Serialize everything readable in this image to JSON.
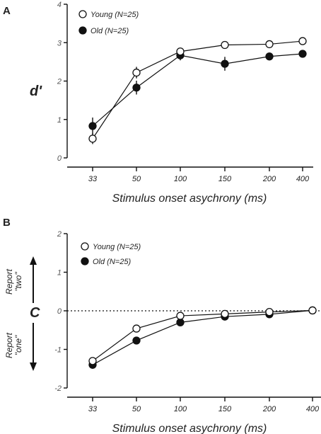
{
  "chart_data": [
    {
      "panel": "A",
      "type": "line",
      "categories": [
        "33",
        "50",
        "100",
        "150",
        "200",
        "400"
      ],
      "ylabel": "d'",
      "xlabel": "Stimulus onset asychrony (ms)",
      "ylim": [
        0,
        4
      ],
      "yticks": [
        "0",
        "1",
        "2",
        "3",
        "4"
      ],
      "legend_position": "top-left",
      "series": [
        {
          "name": "Young (N=25)",
          "marker": "open-circle",
          "values": [
            0.5,
            2.22,
            2.77,
            2.94,
            2.96,
            3.04
          ],
          "err": [
            0.14,
            0.15,
            0.07,
            0.06,
            0.06,
            0.05
          ]
        },
        {
          "name": "Old (N=25)",
          "marker": "filled-circle",
          "values": [
            0.83,
            1.83,
            2.67,
            2.45,
            2.64,
            2.71
          ],
          "err": [
            0.22,
            0.18,
            0.13,
            0.18,
            0.1,
            0.1
          ]
        }
      ]
    },
    {
      "panel": "B",
      "type": "line",
      "categories": [
        "33",
        "50",
        "100",
        "150",
        "200",
        "400"
      ],
      "ylabel": "C",
      "xlabel": "Stimulus onset asychrony (ms)",
      "ylim": [
        -2,
        2
      ],
      "yticks": [
        "-2",
        "-1",
        "0",
        "1",
        "2"
      ],
      "reference_line": 0,
      "legend_position": "top-left",
      "report_labels": {
        "upper": [
          "Report",
          "\"two\""
        ],
        "lower": [
          "Report",
          "\"one\""
        ]
      },
      "series": [
        {
          "name": "Young (N=25)",
          "marker": "open-circle",
          "values": [
            -1.3,
            -0.46,
            -0.13,
            -0.08,
            -0.03,
            0.01
          ]
        },
        {
          "name": "Old (N=25)",
          "marker": "filled-circle",
          "values": [
            -1.4,
            -0.77,
            -0.3,
            -0.15,
            -0.09,
            0.01
          ]
        }
      ]
    }
  ]
}
